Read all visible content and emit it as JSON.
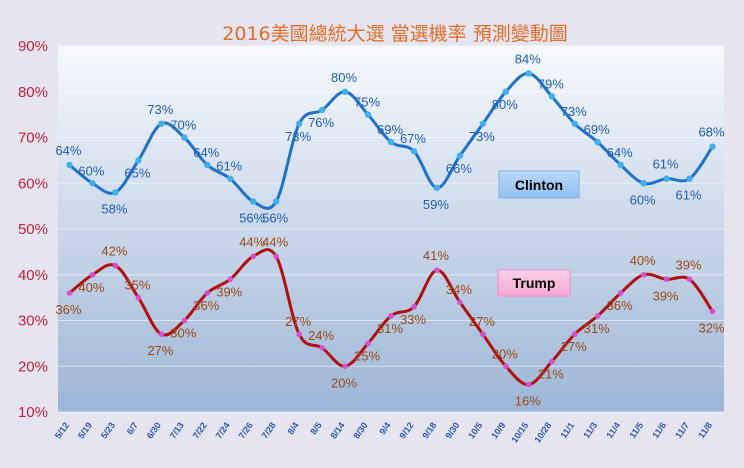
{
  "chart_data": {
    "type": "line",
    "title": "2016美國總統大選 當選機率 預測變動圖",
    "ylim": [
      10,
      90
    ],
    "yticks": [
      "10%",
      "20%",
      "30%",
      "40%",
      "50%",
      "60%",
      "70%",
      "80%",
      "90%"
    ],
    "categories": [
      "5/12",
      "5/19",
      "5/23",
      "6/7",
      "6/30",
      "7/13",
      "7/22",
      "7/24",
      "7/26",
      "7/28",
      "8/4",
      "8/5",
      "8/14",
      "8/30",
      "9/4",
      "9/12",
      "9/18",
      "9/30",
      "10/5",
      "10/9",
      "10/15",
      "10/28",
      "11/1",
      "11/3",
      "11/4",
      "11/5",
      "11/6",
      "11/7",
      "11/8"
    ],
    "series": [
      {
        "name": "Clinton",
        "color": "#1f72c9",
        "values": [
          64,
          60,
          58,
          65,
          73,
          70,
          64,
          61,
          56,
          56,
          73,
          76,
          80,
          75,
          69,
          67,
          59,
          66,
          73,
          80,
          84,
          79,
          73,
          69,
          64,
          60,
          61,
          61,
          68
        ],
        "labels": [
          "64%",
          "60%",
          "58%",
          "65%",
          "73%",
          "70%",
          "64%",
          "61%",
          "56%",
          "56%",
          "73%",
          "76%",
          "80%",
          "75%",
          "69%",
          "67%",
          "59%",
          "66%",
          "73%",
          "80%",
          "84%",
          "79%",
          "73%",
          "69%",
          "64%",
          "60%",
          "61%",
          "61%",
          "68%"
        ]
      },
      {
        "name": "Trump",
        "color": "#b01010",
        "values": [
          36,
          40,
          42,
          35,
          27,
          30,
          36,
          39,
          44,
          44,
          27,
          24,
          20,
          25,
          31,
          33,
          41,
          34,
          27,
          20,
          16,
          21,
          27,
          31,
          36,
          40,
          39,
          39,
          32
        ],
        "labels": [
          "36%",
          "40%",
          "42%",
          "35%",
          "27%",
          "30%",
          "36%",
          "39%",
          "44%",
          "44%",
          "27%",
          "24%",
          "20%",
          "25%",
          "31%",
          "33%",
          "41%",
          "34%",
          "27%",
          "20%",
          "16%",
          "21%",
          "27%",
          "31%",
          "36%",
          "40%",
          "39%",
          "39%",
          "32%"
        ]
      }
    ],
    "legend": [
      "Clinton",
      "Trump"
    ],
    "grid": true
  }
}
